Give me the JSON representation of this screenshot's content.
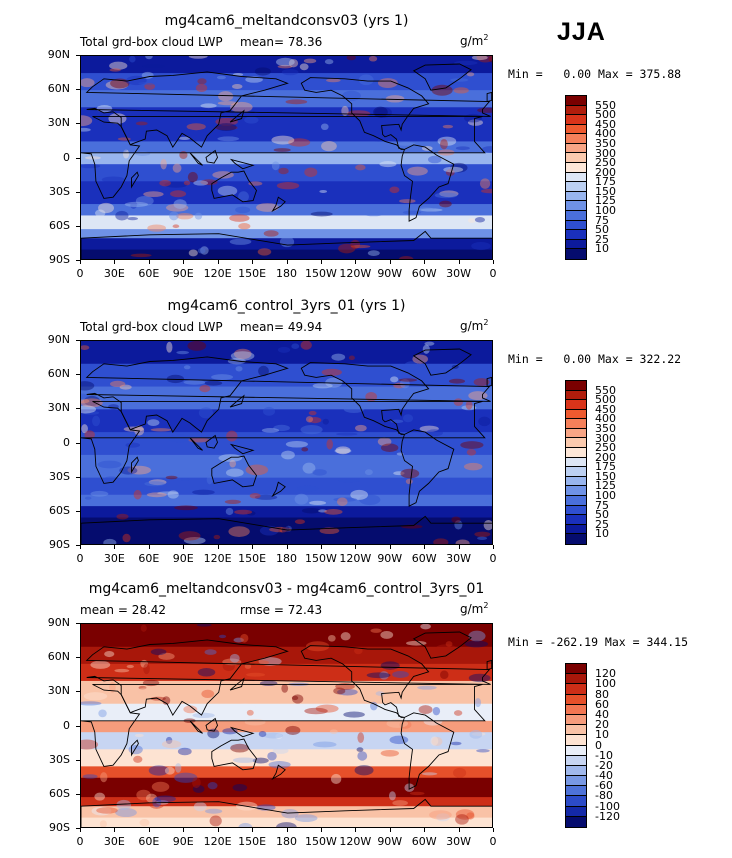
{
  "season": "JJA",
  "panels": [
    {
      "title": "mg4cam6_meltandconsv03 (yrs 1)",
      "left_label": "Total grd-box cloud LWP",
      "mean_label": "mean=  78.36",
      "extra_label": "",
      "units": "g/m",
      "units_sup": "2",
      "minmax": "Min =   0.00 Max = 375.88",
      "colorbar": {
        "labels": [
          "550",
          "500",
          "450",
          "400",
          "350",
          "300",
          "250",
          "200",
          "175",
          "150",
          "125",
          "100",
          "75",
          "50",
          "25",
          "10"
        ],
        "colors": [
          "#7a0000",
          "#b01d0c",
          "#d9341a",
          "#ee5a2f",
          "#f5805a",
          "#f8a585",
          "#fbcaae",
          "#fde7d8",
          "#dde6f5",
          "#bcd0f2",
          "#98b5ee",
          "#6f92e6",
          "#4a6fdb",
          "#2f4fd0",
          "#1a30bc",
          "#0c1a9c",
          "#050c6e"
        ]
      }
    },
    {
      "title": "mg4cam6_control_3yrs_01 (yrs 1)",
      "left_label": "Total grd-box cloud LWP",
      "mean_label": "mean=  49.94",
      "extra_label": "",
      "units": "g/m",
      "units_sup": "2",
      "minmax": "Min =   0.00 Max = 322.22",
      "colorbar": {
        "labels": [
          "550",
          "500",
          "450",
          "400",
          "350",
          "300",
          "250",
          "200",
          "175",
          "150",
          "125",
          "100",
          "75",
          "50",
          "25",
          "10"
        ],
        "colors": [
          "#7a0000",
          "#b01d0c",
          "#d9341a",
          "#ee5a2f",
          "#f5805a",
          "#f8a585",
          "#fbcaae",
          "#fde7d8",
          "#dde6f5",
          "#bcd0f2",
          "#98b5ee",
          "#6f92e6",
          "#4a6fdb",
          "#2f4fd0",
          "#1a30bc",
          "#0c1a9c",
          "#050c6e"
        ]
      }
    },
    {
      "title": "mg4cam6_meltandconsv03 - mg4cam6_control_3yrs_01",
      "left_label": "mean =   28.42",
      "mean_label": "",
      "extra_label": "rmse =  72.43",
      "units": "g/m",
      "units_sup": "2",
      "minmax": "Min = -262.19 Max = 344.15",
      "colorbar": {
        "labels": [
          "120",
          "100",
          "80",
          "60",
          "40",
          "20",
          "10",
          "0",
          "-10",
          "-20",
          "-40",
          "-60",
          "-80",
          "-100",
          "-120"
        ],
        "colors": [
          "#7a0000",
          "#a8170a",
          "#cd2e17",
          "#e6502a",
          "#f27652",
          "#f69c7c",
          "#f9c2a6",
          "#fde3d2",
          "#e9eef8",
          "#c7d5f2",
          "#a0b8ec",
          "#7898e4",
          "#4e72d8",
          "#2c4bc8",
          "#1429a8",
          "#050c6e"
        ]
      }
    }
  ],
  "axes": {
    "y_ticks": [
      "90N",
      "60N",
      "30N",
      "0",
      "30S",
      "60S",
      "90S"
    ],
    "x_ticks": [
      "0",
      "30E",
      "60E",
      "90E",
      "120E",
      "150E",
      "180",
      "150W",
      "120W",
      "90W",
      "60W",
      "30W",
      "0"
    ]
  }
}
